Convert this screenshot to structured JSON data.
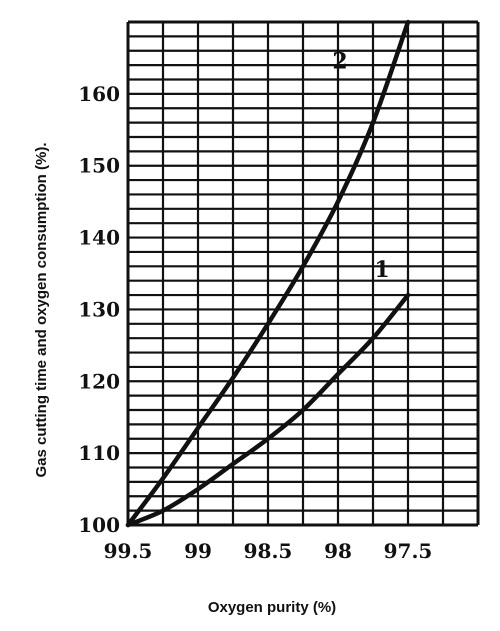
{
  "chart_data": {
    "type": "line",
    "xlabel": "Oxygen purity (%)",
    "ylabel": "Gas cutting time and oxygen consumption (%).",
    "xlim": [
      99.5,
      97.0
    ],
    "ylim": [
      100,
      170
    ],
    "x_tick_labels": [
      "99.5",
      "99",
      "98.5",
      "98",
      "97.5"
    ],
    "x_tick_values": [
      99.5,
      99.0,
      98.5,
      98.0,
      97.5
    ],
    "y_tick_labels": [
      "100",
      "110",
      "120",
      "130",
      "140",
      "150",
      "160"
    ],
    "y_tick_values": [
      100,
      110,
      120,
      130,
      140,
      150,
      160
    ],
    "grid": true,
    "series": [
      {
        "name": "1",
        "x": [
          99.5,
          99.25,
          99.0,
          98.75,
          98.5,
          98.25,
          98.0,
          97.75,
          97.5
        ],
        "y": [
          100,
          102.0,
          105.0,
          108.5,
          112.0,
          116.0,
          121.0,
          126.0,
          132.0
        ]
      },
      {
        "name": "2",
        "x": [
          99.5,
          99.25,
          99.0,
          98.75,
          98.5,
          98.25,
          98.0,
          97.75,
          97.5
        ],
        "y": [
          100,
          106.5,
          113.5,
          120.5,
          128.0,
          136.0,
          145.0,
          156.0,
          170.0
        ]
      }
    ]
  }
}
